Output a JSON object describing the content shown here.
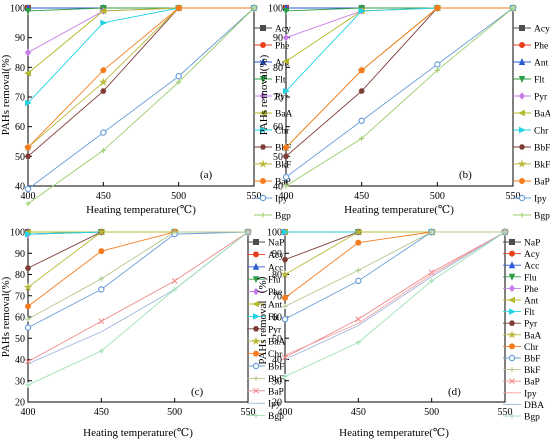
{
  "chart_data": [
    {
      "id": "a",
      "type": "line",
      "panel_label": "(a)",
      "xlabel": "Heating temperature(℃)",
      "ylabel": "PAHs removal(%)",
      "x": [
        400,
        450,
        500,
        550
      ],
      "xlim": [
        400,
        550
      ],
      "ylim": [
        40,
        100
      ],
      "xticks": [
        "400",
        "450",
        "500",
        "550"
      ],
      "yticks": [
        "40",
        "50",
        "60",
        "70",
        "80",
        "90",
        "100"
      ],
      "legend_position": "right",
      "series": [
        {
          "name": "Acy",
          "color": "#4d4d4d",
          "marker": "square",
          "values": [
            100,
            100,
            100,
            100
          ]
        },
        {
          "name": "Phe",
          "color": "#e8401c",
          "marker": "circle",
          "values": [
            100,
            100,
            100,
            100
          ]
        },
        {
          "name": "Ant",
          "color": "#2a5cd8",
          "marker": "triangle-up",
          "values": [
            100,
            100,
            100,
            100
          ]
        },
        {
          "name": "Flt",
          "color": "#2e9e46",
          "marker": "triangle-down",
          "values": [
            99,
            100,
            100,
            100
          ]
        },
        {
          "name": "Pyr",
          "color": "#c77ce8",
          "marker": "diamond",
          "values": [
            85,
            99,
            100,
            100
          ]
        },
        {
          "name": "BaA",
          "color": "#b5b82c",
          "marker": "triangle-left",
          "values": [
            78,
            99,
            100,
            100
          ]
        },
        {
          "name": "Chr",
          "color": "#21d3e3",
          "marker": "triangle-right",
          "values": [
            68,
            95,
            100,
            100
          ]
        },
        {
          "name": "BbF",
          "color": "#7d3c35",
          "marker": "hexagon",
          "values": [
            50,
            72,
            100,
            100
          ]
        },
        {
          "name": "BkF",
          "color": "#b9b93a",
          "marker": "star",
          "values": [
            53,
            75,
            100,
            100
          ]
        },
        {
          "name": "BaP",
          "color": "#f57c1f",
          "marker": "circle",
          "values": [
            53,
            79,
            100,
            100
          ]
        },
        {
          "name": "Ipy",
          "color": "#6a9ed8",
          "marker": "circle-dot",
          "values": [
            39,
            58,
            77,
            100
          ]
        },
        {
          "name": "Bgp",
          "color": "#9acd6a",
          "marker": "plus",
          "values": [
            34,
            52,
            75,
            100
          ]
        }
      ]
    },
    {
      "id": "b",
      "type": "line",
      "panel_label": "(b)",
      "xlabel": "Heating temperature(℃)",
      "ylabel": "PAHs removal(%)",
      "x": [
        400,
        450,
        500,
        550
      ],
      "xlim": [
        400,
        550
      ],
      "ylim": [
        40,
        100
      ],
      "xticks": [
        "400",
        "450",
        "500",
        "550"
      ],
      "yticks": [
        "40",
        "50",
        "60",
        "70",
        "80",
        "90",
        "100"
      ],
      "legend_position": "right",
      "series": [
        {
          "name": "Acy",
          "color": "#4d4d4d",
          "marker": "square",
          "values": [
            100,
            100,
            100,
            100
          ]
        },
        {
          "name": "Phe",
          "color": "#e8401c",
          "marker": "circle",
          "values": [
            100,
            100,
            100,
            100
          ]
        },
        {
          "name": "Ant",
          "color": "#2a5cd8",
          "marker": "triangle-up",
          "values": [
            100,
            100,
            100,
            100
          ]
        },
        {
          "name": "Flt",
          "color": "#2e9e46",
          "marker": "triangle-down",
          "values": [
            99,
            100,
            100,
            100
          ]
        },
        {
          "name": "Pyr",
          "color": "#c77ce8",
          "marker": "diamond",
          "values": [
            90,
            99,
            100,
            100
          ]
        },
        {
          "name": "BaA",
          "color": "#b5b82c",
          "marker": "triangle-left",
          "values": [
            82,
            99,
            100,
            100
          ]
        },
        {
          "name": "Chr",
          "color": "#21d3e3",
          "marker": "triangle-right",
          "values": [
            72,
            99,
            100,
            100
          ]
        },
        {
          "name": "BbF",
          "color": "#7d3c35",
          "marker": "hexagon",
          "values": [
            50,
            72,
            100,
            100
          ]
        },
        {
          "name": "BkF",
          "color": "#b9b93a",
          "marker": "star",
          "values": [
            53,
            79,
            100,
            100
          ]
        },
        {
          "name": "BaP",
          "color": "#f57c1f",
          "marker": "circle",
          "values": [
            53,
            79,
            100,
            100
          ]
        },
        {
          "name": "Ipy",
          "color": "#6a9ed8",
          "marker": "circle-dot",
          "values": [
            43,
            62,
            81,
            100
          ]
        },
        {
          "name": "Bgp",
          "color": "#9acd6a",
          "marker": "plus",
          "values": [
            40,
            56,
            79,
            100
          ]
        }
      ]
    },
    {
      "id": "c",
      "type": "line",
      "panel_label": "(c)",
      "xlabel": "Heating temperature(℃)",
      "ylabel": "PAHs removal(%)",
      "x": [
        400,
        450,
        500,
        550
      ],
      "xlim": [
        400,
        550
      ],
      "ylim": [
        20,
        100
      ],
      "xticks": [
        "400",
        "450",
        "500",
        "550"
      ],
      "yticks": [
        "20",
        "30",
        "40",
        "50",
        "60",
        "70",
        "80",
        "90",
        "100"
      ],
      "legend_position": "right",
      "series": [
        {
          "name": "NaP",
          "color": "#4d4d4d",
          "marker": "square",
          "values": [
            100,
            100,
            100,
            100
          ]
        },
        {
          "name": "Acy",
          "color": "#e8401c",
          "marker": "circle",
          "values": [
            100,
            100,
            100,
            100
          ]
        },
        {
          "name": "Acc",
          "color": "#2a5cd8",
          "marker": "triangle-up",
          "values": [
            100,
            100,
            100,
            100
          ]
        },
        {
          "name": "Flu",
          "color": "#2e9e46",
          "marker": "triangle-down",
          "values": [
            99,
            100,
            100,
            100
          ]
        },
        {
          "name": "Phe",
          "color": "#c77ce8",
          "marker": "diamond",
          "values": [
            99,
            100,
            100,
            100
          ]
        },
        {
          "name": "Ant",
          "color": "#b5b82c",
          "marker": "triangle-left",
          "values": [
            100,
            100,
            100,
            100
          ]
        },
        {
          "name": "Flt",
          "color": "#21d3e3",
          "marker": "triangle-right",
          "values": [
            99,
            100,
            100,
            100
          ]
        },
        {
          "name": "Pyr",
          "color": "#7d3c35",
          "marker": "hexagon",
          "values": [
            83,
            100,
            100,
            100
          ]
        },
        {
          "name": "BaA",
          "color": "#b9b93a",
          "marker": "star",
          "values": [
            74,
            100,
            100,
            100
          ]
        },
        {
          "name": "Chr",
          "color": "#f57c1f",
          "marker": "circle",
          "values": [
            65,
            91,
            100,
            100
          ]
        },
        {
          "name": "BbF",
          "color": "#6a9ed8",
          "marker": "circle-dot",
          "values": [
            55,
            73,
            99,
            100
          ]
        },
        {
          "name": "BkF",
          "color": "#b0c98a",
          "marker": "plus",
          "values": [
            59,
            78,
            100,
            100
          ]
        },
        {
          "name": "BaP",
          "color": "#f08a8a",
          "marker": "x",
          "values": [
            39,
            58,
            77,
            100
          ]
        },
        {
          "name": "Ipy",
          "color": "#9fb4dc",
          "marker": "none",
          "values": [
            38,
            53,
            73,
            100
          ]
        },
        {
          "name": "Bgp",
          "color": "#9fe0b4",
          "marker": "plus",
          "values": [
            28,
            44,
            73,
            100
          ]
        }
      ]
    },
    {
      "id": "d",
      "type": "line",
      "panel_label": "(d)",
      "xlabel": "Heating temperature(℃)",
      "ylabel": "PAHs removal（%）",
      "x": [
        400,
        450,
        500,
        550
      ],
      "xlim": [
        400,
        550
      ],
      "ylim": [
        20,
        100
      ],
      "xticks": [
        "400",
        "450",
        "500",
        "550"
      ],
      "yticks": [
        "20",
        "30",
        "40",
        "50",
        "60",
        "70",
        "80",
        "90",
        "100"
      ],
      "legend_position": "right",
      "series": [
        {
          "name": "NaP",
          "color": "#4d4d4d",
          "marker": "square",
          "values": [
            100,
            100,
            100,
            100
          ]
        },
        {
          "name": "Acy",
          "color": "#e8401c",
          "marker": "circle",
          "values": [
            100,
            100,
            100,
            100
          ]
        },
        {
          "name": "Acc",
          "color": "#2a5cd8",
          "marker": "triangle-up",
          "values": [
            100,
            100,
            100,
            100
          ]
        },
        {
          "name": "Flu",
          "color": "#2e9e46",
          "marker": "triangle-down",
          "values": [
            100,
            100,
            100,
            100
          ]
        },
        {
          "name": "Phe",
          "color": "#c77ce8",
          "marker": "diamond",
          "values": [
            100,
            100,
            100,
            100
          ]
        },
        {
          "name": "Ant",
          "color": "#b5b82c",
          "marker": "triangle-left",
          "values": [
            100,
            100,
            100,
            100
          ]
        },
        {
          "name": "Flt",
          "color": "#21d3e3",
          "marker": "triangle-right",
          "values": [
            100,
            100,
            100,
            100
          ]
        },
        {
          "name": "Pyr",
          "color": "#7d3c35",
          "marker": "hexagon",
          "values": [
            87,
            100,
            100,
            100
          ]
        },
        {
          "name": "BaA",
          "color": "#b9b93a",
          "marker": "star",
          "values": [
            80,
            100,
            100,
            100
          ]
        },
        {
          "name": "Chr",
          "color": "#f57c1f",
          "marker": "circle",
          "values": [
            69,
            95,
            100,
            100
          ]
        },
        {
          "name": "BbF",
          "color": "#6a9ed8",
          "marker": "circle-dot",
          "values": [
            59,
            77,
            100,
            100
          ]
        },
        {
          "name": "BkF",
          "color": "#b0c98a",
          "marker": "plus",
          "values": [
            65,
            82,
            100,
            100
          ]
        },
        {
          "name": "BaP",
          "color": "#f08a8a",
          "marker": "x",
          "values": [
            41,
            59,
            81,
            100
          ]
        },
        {
          "name": "Ipy",
          "color": "#f2a0a0",
          "marker": "none",
          "values": [
            42,
            57,
            80,
            100
          ]
        },
        {
          "name": "DBA",
          "color": "#9fb4dc",
          "marker": "none",
          "values": [
            40,
            56,
            79,
            100
          ]
        },
        {
          "name": "Bgp",
          "color": "#9fe0b4",
          "marker": "plus",
          "values": [
            32,
            48,
            77,
            100
          ]
        }
      ]
    }
  ]
}
